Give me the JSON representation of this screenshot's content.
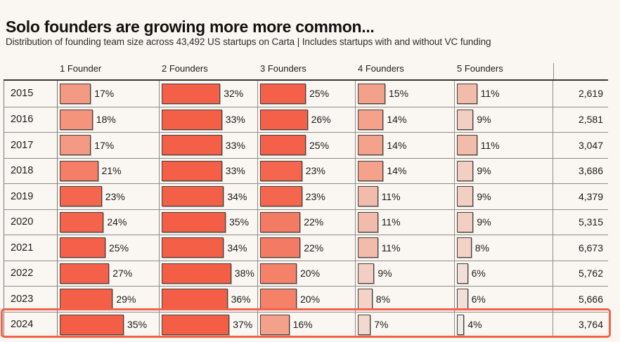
{
  "header": {
    "title": "Solo founders are growing more more common...",
    "subtitle": "Distribution of founding team size across 43,492 US startups on Carta | Includes startups with and without VC funding"
  },
  "colors": {
    "background": "#FAF7F3",
    "text": "#1d1b19",
    "grid_line": "#8f8c89",
    "table_top_border": "#3b3734",
    "bar_border": "#46403c",
    "highlight_border": "#F4624A"
  },
  "chart_data": {
    "type": "table",
    "title": "Solo founders are growing more more common...",
    "subtitle": "Distribution of founding team size across 43,492 US startups on Carta | Includes startups with and without VC funding",
    "columns": [
      "1 Founder",
      "2 Founders",
      "3 Founders",
      "4 Founders",
      "5 Founders"
    ],
    "value_unit": "%",
    "rows": [
      {
        "year": "2015",
        "values": [
          17,
          32,
          25,
          15,
          11
        ],
        "total": "2,619",
        "highlight": false
      },
      {
        "year": "2016",
        "values": [
          18,
          33,
          26,
          14,
          9
        ],
        "total": "2,581",
        "highlight": false
      },
      {
        "year": "2017",
        "values": [
          17,
          33,
          25,
          14,
          11
        ],
        "total": "3,047",
        "highlight": false
      },
      {
        "year": "2018",
        "values": [
          21,
          33,
          23,
          14,
          9
        ],
        "total": "3,686",
        "highlight": false
      },
      {
        "year": "2019",
        "values": [
          23,
          34,
          23,
          11,
          9
        ],
        "total": "4,379",
        "highlight": false
      },
      {
        "year": "2020",
        "values": [
          24,
          35,
          22,
          11,
          9
        ],
        "total": "5,315",
        "highlight": false
      },
      {
        "year": "2021",
        "values": [
          25,
          34,
          22,
          11,
          8
        ],
        "total": "6,673",
        "highlight": false
      },
      {
        "year": "2022",
        "values": [
          27,
          38,
          20,
          9,
          6
        ],
        "total": "5,762",
        "highlight": false
      },
      {
        "year": "2023",
        "values": [
          29,
          36,
          20,
          8,
          6
        ],
        "total": "5,666",
        "highlight": false
      },
      {
        "year": "2024",
        "values": [
          35,
          37,
          16,
          7,
          4
        ],
        "total": "3,764",
        "highlight": true
      }
    ],
    "color_ramp": [
      [
        4,
        "#EDECE9"
      ],
      [
        6,
        "#F1DFD8"
      ],
      [
        8,
        "#F3D2C8"
      ],
      [
        9,
        "#F3CEC3"
      ],
      [
        11,
        "#F2BCAD"
      ],
      [
        14,
        "#F4A28C"
      ],
      [
        16,
        "#F4A08A"
      ],
      [
        18,
        "#F4947D"
      ],
      [
        20,
        "#F48168"
      ],
      [
        22,
        "#F47B63"
      ],
      [
        23,
        "#F4664E"
      ],
      [
        25,
        "#F4604A"
      ],
      [
        38,
        "#F45E45"
      ]
    ],
    "legend_position": "none",
    "grid": "table-borders"
  }
}
